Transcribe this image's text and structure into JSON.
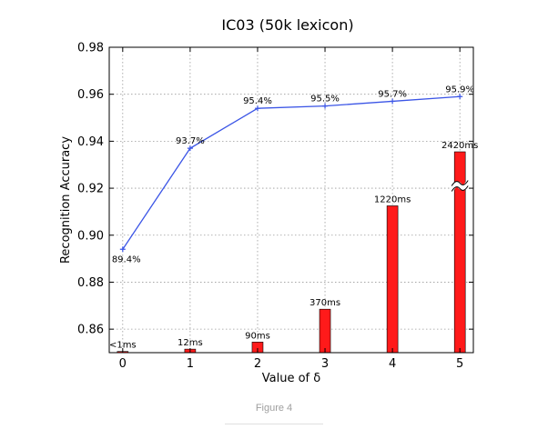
{
  "chart_data": {
    "type": "line+bar",
    "title": "IC03 (50k lexicon)",
    "xlabel": "Value of δ",
    "ylabel": "Recognition Accuracy",
    "xlim": [
      -0.2,
      5.2
    ],
    "ylim": [
      0.85,
      0.98
    ],
    "x_ticks": [
      0,
      1,
      2,
      3,
      4,
      5
    ],
    "y_ticks": [
      0.86,
      0.88,
      0.9,
      0.92,
      0.94,
      0.96,
      0.98
    ],
    "y_tick_labels": [
      "0.86",
      "0.88",
      "0.90",
      "0.92",
      "0.94",
      "0.96",
      "0.98"
    ],
    "grid": true,
    "line_series": {
      "color": "#3b55e6",
      "x": [
        0,
        1,
        2,
        3,
        4,
        5
      ],
      "values": [
        0.894,
        0.937,
        0.954,
        0.955,
        0.957,
        0.959
      ],
      "labels": [
        "89.4%",
        "93.7%",
        "95.4%",
        "95.5%",
        "95.7%",
        "95.9%"
      ]
    },
    "bar_series": {
      "color": "#ff1a1a",
      "x": [
        0,
        1,
        2,
        3,
        4,
        5
      ],
      "bar_tops": [
        0.8505,
        0.8515,
        0.8545,
        0.8685,
        0.9125,
        0.9355
      ],
      "labels": [
        "<1ms",
        "12ms",
        "90ms",
        "370ms",
        "1220ms",
        "2420ms"
      ],
      "break_on_last_bar": true
    }
  },
  "caption": "Figure 4"
}
